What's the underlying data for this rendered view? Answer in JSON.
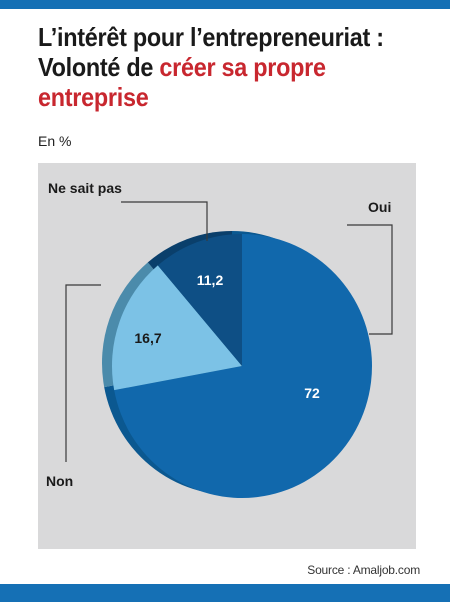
{
  "title": {
    "line1": "L’intérêt pour l’entrepreneuriat :",
    "line2_prefix": "Volonté de ",
    "line2_accent": "créer sa propre",
    "line3_accent": "entreprise"
  },
  "unit": "En %",
  "source": "Source : Amaljob.com",
  "colors": {
    "bar": "#1570b5",
    "panel": "#d9d9da",
    "title_accent": "#c8272f"
  },
  "chart_data": {
    "type": "pie",
    "slices": [
      {
        "label": "Oui",
        "value": 72,
        "value_label": "72",
        "color": "#1168ac",
        "side_color": "#0b5890",
        "text_color": "#ffffff"
      },
      {
        "label": "Non",
        "value": 16.7,
        "value_label": "16,7",
        "color": "#7cc2e6",
        "side_color": "#4b8bab",
        "text_color": "#1a1a1a"
      },
      {
        "label": "Ne sait pas",
        "value": 11.2,
        "value_label": "11,2",
        "color": "#0e4f85",
        "side_color": "#0a3f6b",
        "text_color": "#ffffff"
      }
    ],
    "category_labels": {
      "oui": "Oui",
      "non": "Non",
      "ne_sait_pas": "Ne sait pas"
    }
  }
}
